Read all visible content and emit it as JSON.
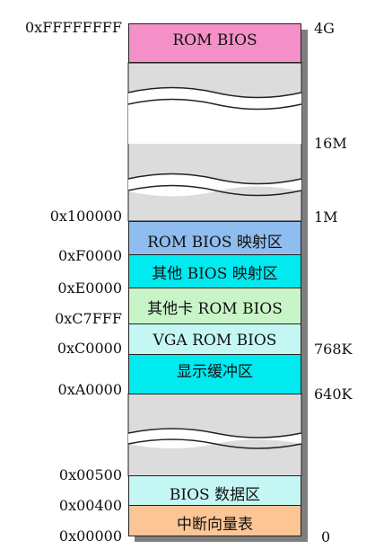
{
  "colors": {
    "rom_bios": "#f48fc8",
    "gap": "#dcdcdc",
    "rom_bios_shadow": "#8fbdf0",
    "other_bios_shadow": "#00eaf0",
    "card_rom": "#c8f5c8",
    "vga_rom": "#c4f7f3",
    "display_buffer": "#00eaf0",
    "bios_data": "#c4f7f3",
    "interrupt_vector": "#fcc596",
    "shadow": "#7f7f7f"
  },
  "addresses": {
    "top": "0xFFFFFFFF",
    "a_100000": "0x100000",
    "a_f0000": "0xF0000",
    "a_e0000": "0xE0000",
    "a_c7fff": "0xC7FFF",
    "a_c0000": "0xC0000",
    "a_a0000": "0xA0000",
    "a_00500": "0x00500",
    "a_00400": "0x00400",
    "a_00000": "0x00000"
  },
  "sizes": {
    "s_4g": "4G",
    "s_16m": "16M",
    "s_1m": "1M",
    "s_768k": "768K",
    "s_640k": "640K",
    "s_0": "0"
  },
  "regions": {
    "rom_bios": "ROM BIOS",
    "rom_bios_shadow": "ROM BIOS 映射区",
    "other_bios_shadow": "其他 BIOS 映射区",
    "card_rom": "其他卡 ROM BIOS",
    "vga_rom": "VGA ROM BIOS",
    "display_buffer": "显示缓冲区",
    "bios_data": "BIOS 数据区",
    "interrupt_vector": "中断向量表"
  }
}
